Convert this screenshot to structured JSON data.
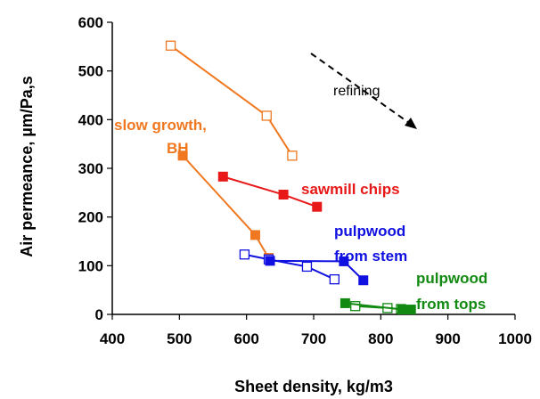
{
  "chart_data": {
    "type": "line",
    "xlabel": "Sheet density, kg/m3",
    "ylabel": "Air permeance, µm/Pa,s",
    "xlim": [
      400,
      1000
    ],
    "ylim": [
      0,
      600
    ],
    "x_ticks": [
      "400",
      "500",
      "600",
      "700",
      "800",
      "900",
      "1000"
    ],
    "y_ticks": [
      "0",
      "100",
      "200",
      "300",
      "400",
      "500",
      "600"
    ],
    "grid": false,
    "series": [
      {
        "key": "slow_open",
        "color": "#F07820",
        "marker": "open-square",
        "points": [
          [
            487,
            552
          ],
          [
            630,
            408
          ],
          [
            668,
            326
          ]
        ]
      },
      {
        "key": "slow_filled",
        "color": "#F07820",
        "marker": "filled-square",
        "points": [
          [
            505,
            326
          ],
          [
            613,
            163
          ],
          [
            633,
            116
          ]
        ]
      },
      {
        "key": "sawmill",
        "color": "#E81818",
        "marker": "filled-square",
        "points": [
          [
            565,
            283
          ],
          [
            655,
            246
          ],
          [
            705,
            221
          ]
        ]
      },
      {
        "key": "stem_open",
        "color": "#1010E0",
        "marker": "open-square",
        "points": [
          [
            597,
            123
          ],
          [
            633,
            113
          ],
          [
            690,
            98
          ],
          [
            731,
            72
          ]
        ]
      },
      {
        "key": "stem_filled",
        "color": "#1010E0",
        "marker": "filled-square",
        "points": [
          [
            635,
            110
          ],
          [
            745,
            109
          ],
          [
            774,
            70
          ]
        ]
      },
      {
        "key": "tops_open",
        "color": "#128A12",
        "marker": "open-square",
        "points": [
          [
            762,
            17
          ],
          [
            810,
            13
          ],
          [
            830,
            11
          ]
        ]
      },
      {
        "key": "tops_filled",
        "color": "#128A12",
        "marker": "filled-square",
        "points": [
          [
            747,
            23
          ],
          [
            832,
            10
          ],
          [
            845,
            10
          ]
        ]
      }
    ],
    "annotations": [
      {
        "lines": [
          "slow growth,",
          "BH"
        ],
        "color": "#F07820"
      },
      {
        "lines": [
          "sawmill chips"
        ],
        "color": "#E81818"
      },
      {
        "lines": [
          "pulpwood",
          "from stem"
        ],
        "color": "#1010E0"
      },
      {
        "lines": [
          "pulpwood",
          "from tops"
        ],
        "color": "#128A12"
      }
    ],
    "arrow_label": "refining"
  }
}
